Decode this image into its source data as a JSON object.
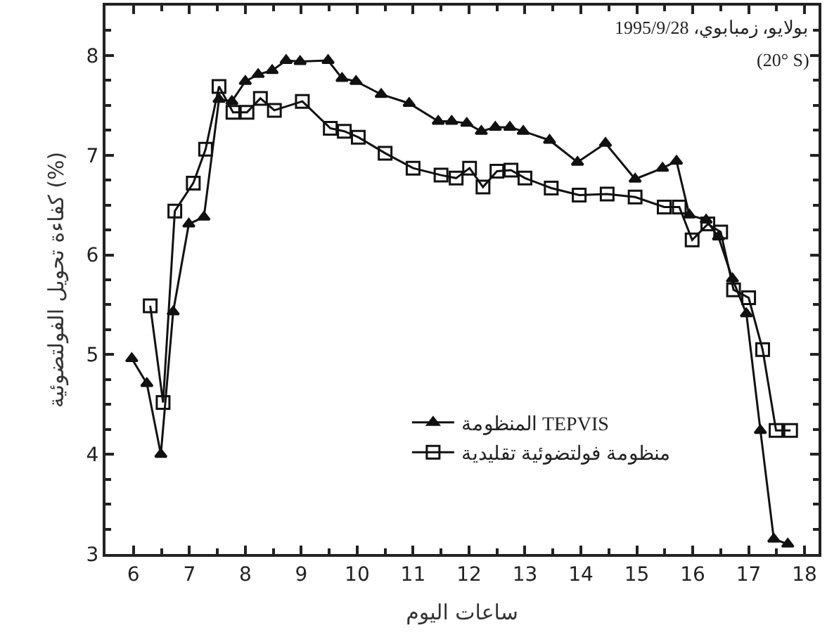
{
  "chart_data": {
    "type": "line",
    "xlabel": "ساعات اليوم",
    "ylabel": "كفاءة تحويل الفولتضوئية (%)",
    "annotations": [
      "بولايو، زمبابوي، 1995/9/28",
      "(20° S)"
    ],
    "xlim": [
      5.5,
      18.25
    ],
    "xticks": [
      6,
      7,
      8,
      9,
      10,
      11,
      12,
      13,
      14,
      15,
      16,
      17,
      18
    ],
    "ylim": [
      3,
      8.5
    ],
    "yticks": [
      3,
      4,
      5,
      6,
      7,
      8
    ],
    "grid": false,
    "legend": "right",
    "line_style": "solid",
    "series": [
      {
        "name": "المنظومة TEPVIS",
        "color": "#111111",
        "marker": "triangle",
        "x": [
          5.97,
          6.24,
          6.49,
          6.71,
          6.99,
          7.26,
          7.53,
          7.76,
          8.0,
          8.23,
          8.48,
          8.73,
          8.98,
          9.48,
          9.73,
          9.98,
          10.43,
          10.93,
          11.45,
          11.69,
          11.96,
          12.22,
          12.47,
          12.73,
          12.97,
          13.44,
          13.94,
          14.44,
          14.97,
          15.46,
          15.71,
          15.94,
          16.24,
          16.46,
          16.71,
          16.96,
          17.21,
          17.45,
          17.7
        ],
        "values": [
          4.96,
          4.71,
          4.0,
          5.43,
          6.31,
          6.38,
          7.56,
          7.54,
          7.74,
          7.81,
          7.85,
          7.95,
          7.94,
          7.95,
          7.77,
          7.74,
          7.61,
          7.52,
          7.34,
          7.34,
          7.32,
          7.24,
          7.28,
          7.28,
          7.24,
          7.15,
          6.93,
          7.12,
          6.76,
          6.87,
          6.94,
          6.4,
          6.35,
          6.18,
          5.76,
          5.41,
          4.24,
          3.15,
          3.1
        ]
      },
      {
        "name": "منظومة فولتضوئية تقليدية",
        "color": "#111111",
        "marker": "square",
        "x": [
          6.3,
          6.53,
          6.74,
          7.07,
          7.29,
          7.53,
          7.78,
          8.03,
          8.27,
          8.52,
          9.02,
          9.52,
          9.77,
          10.02,
          10.5,
          11.0,
          11.5,
          11.77,
          12.01,
          12.25,
          12.5,
          12.75,
          13.0,
          13.47,
          13.97,
          14.47,
          14.97,
          15.49,
          15.76,
          15.99,
          16.27,
          16.5,
          16.73,
          17.0,
          17.25,
          17.49,
          17.75
        ],
        "values": [
          5.49,
          4.52,
          6.44,
          6.72,
          7.06,
          7.69,
          7.43,
          7.43,
          7.57,
          7.45,
          7.54,
          7.27,
          7.24,
          7.18,
          7.02,
          6.87,
          6.8,
          6.77,
          6.87,
          6.68,
          6.84,
          6.85,
          6.77,
          6.67,
          6.6,
          6.61,
          6.58,
          6.48,
          6.48,
          6.15,
          6.31,
          6.23,
          5.65,
          5.57,
          5.05,
          4.24,
          4.24
        ]
      }
    ]
  }
}
